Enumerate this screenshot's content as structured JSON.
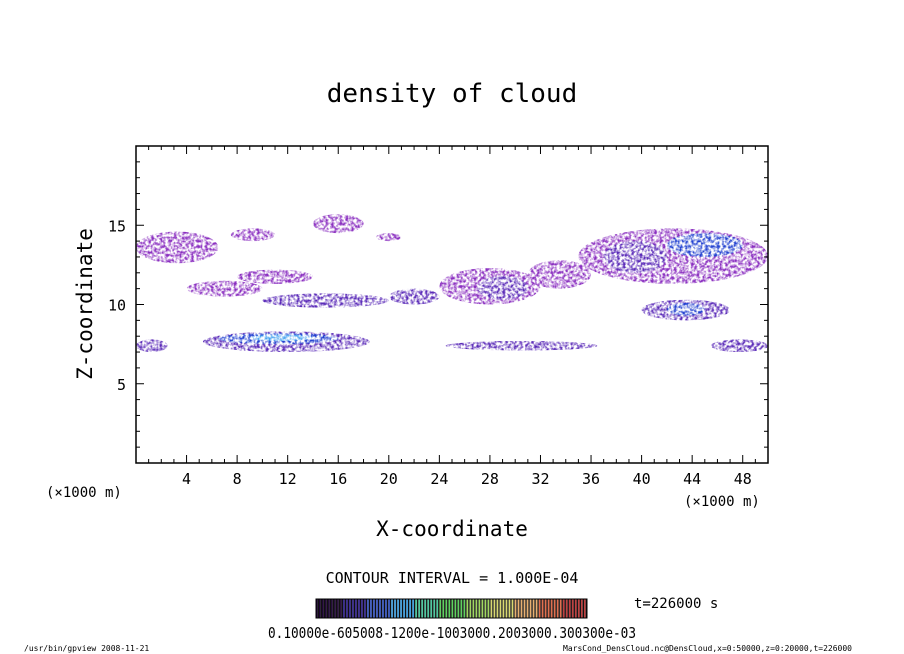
{
  "chart_data": {
    "type": "heatmap",
    "title": "density of cloud",
    "xlabel": "X-coordinate",
    "ylabel": "Z-coordinate",
    "x_unit": "(×1000 m)",
    "y_unit": "(×1000 m)",
    "xlim": [
      0,
      50
    ],
    "ylim": [
      0,
      20
    ],
    "x_ticks": [
      4,
      8,
      12,
      16,
      20,
      24,
      28,
      32,
      36,
      40,
      44,
      48
    ],
    "y_ticks": [
      5,
      10,
      15
    ],
    "contour_interval": "CONTOUR INTERVAL = 1.000E-04",
    "time_label": "t=226000 s",
    "colorbar_labels": "0.10000e-605008-1200e-1003000.2003000.300300e-03",
    "footer_left": "/usr/bin/gpview  2008-11-21",
    "footer_right": "MarsCond_DensCloud.nc@DensCloud,x=0:50000,z=0:20000,t=226000",
    "colorbar_colors": [
      "#1a0030",
      "#2a1a8a",
      "#3050c0",
      "#40a0e0",
      "#50c8a0",
      "#60d060",
      "#a0d860",
      "#d8d870",
      "#e8b070",
      "#e07050",
      "#c04040"
    ],
    "field_colors": {
      "low": "#8a2ec0",
      "mid": "#5a2ab8",
      "high": "#2040d0",
      "peak": "#40a0f0"
    },
    "regions": [
      {
        "x": [
          0,
          6.5
        ],
        "z": [
          12.6,
          14.6
        ],
        "level": "low"
      },
      {
        "x": [
          7.5,
          11
        ],
        "z": [
          14.0,
          14.8
        ],
        "level": "low"
      },
      {
        "x": [
          14,
          18
        ],
        "z": [
          14.5,
          15.7
        ],
        "level": "low"
      },
      {
        "x": [
          19,
          21
        ],
        "z": [
          14.0,
          14.5
        ],
        "level": "low"
      },
      {
        "x": [
          0,
          2.5
        ],
        "z": [
          7.0,
          7.8
        ],
        "level": "mid"
      },
      {
        "x": [
          5.3,
          18.5
        ],
        "z": [
          7.0,
          8.3
        ],
        "level": "mid"
      },
      {
        "x": [
          6.5,
          16
        ],
        "z": [
          7.5,
          8.2
        ],
        "level": "high"
      },
      {
        "x": [
          9,
          14
        ],
        "z": [
          7.7,
          8.1
        ],
        "level": "peak"
      },
      {
        "x": [
          4,
          10
        ],
        "z": [
          10.5,
          11.5
        ],
        "level": "low"
      },
      {
        "x": [
          10,
          20
        ],
        "z": [
          9.8,
          10.7
        ],
        "level": "mid"
      },
      {
        "x": [
          8,
          14
        ],
        "z": [
          11.3,
          12.2
        ],
        "level": "low"
      },
      {
        "x": [
          20,
          24
        ],
        "z": [
          10.0,
          11.0
        ],
        "level": "mid"
      },
      {
        "x": [
          24,
          32
        ],
        "z": [
          10.0,
          12.3
        ],
        "level": "low"
      },
      {
        "x": [
          27,
          31
        ],
        "z": [
          10.3,
          11.8
        ],
        "level": "mid"
      },
      {
        "x": [
          31,
          36
        ],
        "z": [
          11.0,
          12.8
        ],
        "level": "low"
      },
      {
        "x": [
          35,
          50
        ],
        "z": [
          11.3,
          14.8
        ],
        "level": "low"
      },
      {
        "x": [
          37,
          42
        ],
        "z": [
          12.0,
          14.0
        ],
        "level": "mid"
      },
      {
        "x": [
          42,
          48
        ],
        "z": [
          13.0,
          14.5
        ],
        "level": "high"
      },
      {
        "x": [
          40,
          47
        ],
        "z": [
          9.0,
          10.3
        ],
        "level": "mid"
      },
      {
        "x": [
          42,
          45
        ],
        "z": [
          9.3,
          10.1
        ],
        "level": "high"
      },
      {
        "x": [
          24.5,
          36.5
        ],
        "z": [
          7.1,
          7.7
        ],
        "level": "mid"
      },
      {
        "x": [
          45.5,
          50
        ],
        "z": [
          7.0,
          7.8
        ],
        "level": "mid"
      }
    ]
  }
}
